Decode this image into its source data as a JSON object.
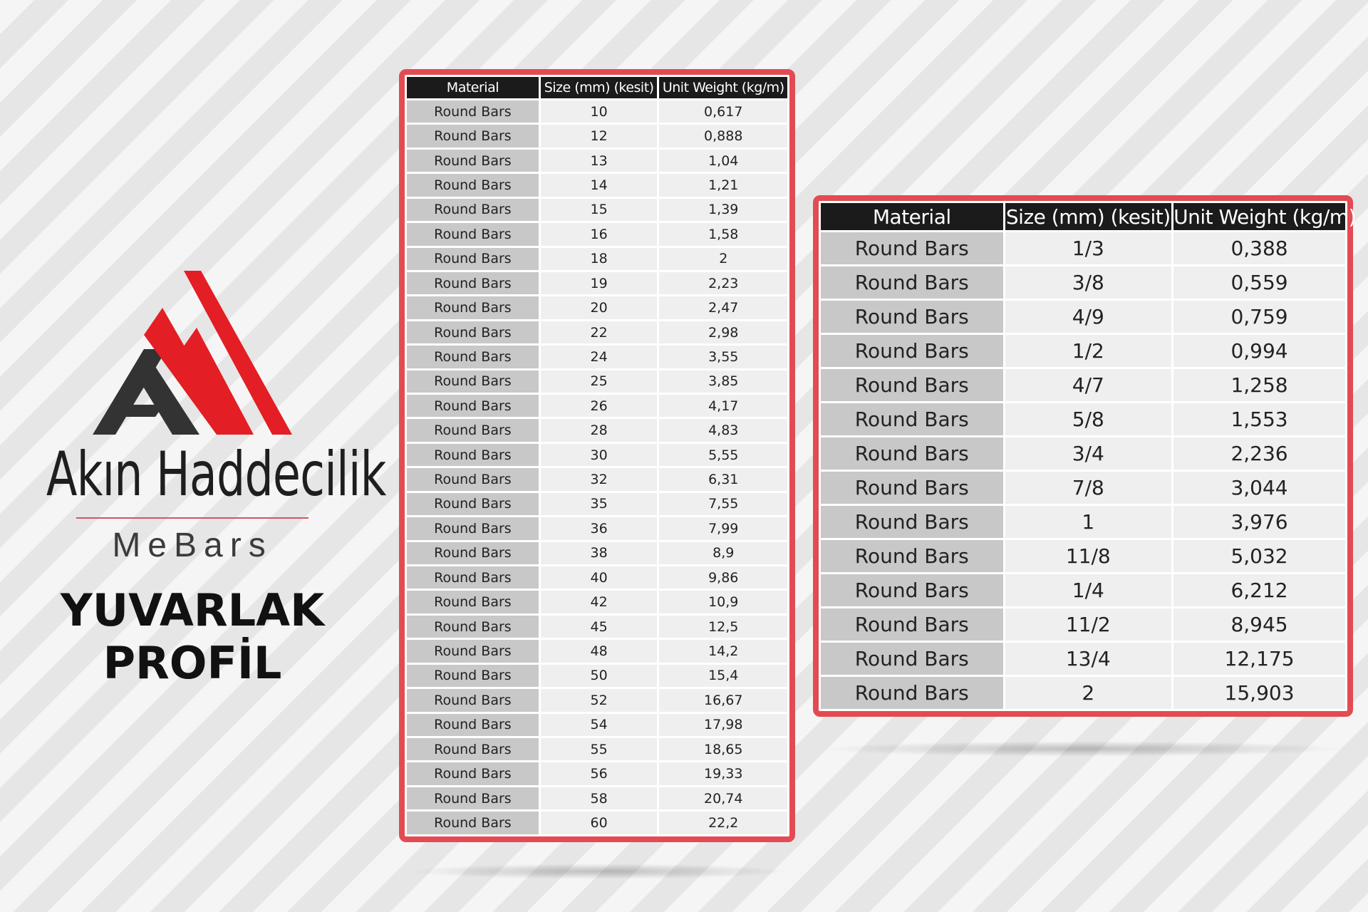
{
  "brand": {
    "company": "Akın Haddecilik",
    "sub": "MeBars",
    "headline_line1": "YUVARLAK",
    "headline_line2": "PROFİL",
    "colors": {
      "red": "#e31e24",
      "dark": "#333333"
    }
  },
  "table_left": {
    "headers": [
      "Material",
      "Size (mm) (kesit)",
      "Unit Weight (kg/m)"
    ],
    "rows": [
      [
        "Round Bars",
        "10",
        "0,617"
      ],
      [
        "Round Bars",
        "12",
        "0,888"
      ],
      [
        "Round Bars",
        "13",
        "1,04"
      ],
      [
        "Round Bars",
        "14",
        "1,21"
      ],
      [
        "Round Bars",
        "15",
        "1,39"
      ],
      [
        "Round Bars",
        "16",
        "1,58"
      ],
      [
        "Round Bars",
        "18",
        "2"
      ],
      [
        "Round Bars",
        "19",
        "2,23"
      ],
      [
        "Round Bars",
        "20",
        "2,47"
      ],
      [
        "Round Bars",
        "22",
        "2,98"
      ],
      [
        "Round Bars",
        "24",
        "3,55"
      ],
      [
        "Round Bars",
        "25",
        "3,85"
      ],
      [
        "Round Bars",
        "26",
        "4,17"
      ],
      [
        "Round Bars",
        "28",
        "4,83"
      ],
      [
        "Round Bars",
        "30",
        "5,55"
      ],
      [
        "Round Bars",
        "32",
        "6,31"
      ],
      [
        "Round Bars",
        "35",
        "7,55"
      ],
      [
        "Round Bars",
        "36",
        "7,99"
      ],
      [
        "Round Bars",
        "38",
        "8,9"
      ],
      [
        "Round Bars",
        "40",
        "9,86"
      ],
      [
        "Round Bars",
        "42",
        "10,9"
      ],
      [
        "Round Bars",
        "45",
        "12,5"
      ],
      [
        "Round Bars",
        "48",
        "14,2"
      ],
      [
        "Round Bars",
        "50",
        "15,4"
      ],
      [
        "Round Bars",
        "52",
        "16,67"
      ],
      [
        "Round Bars",
        "54",
        "17,98"
      ],
      [
        "Round Bars",
        "55",
        "18,65"
      ],
      [
        "Round Bars",
        "56",
        "19,33"
      ],
      [
        "Round Bars",
        "58",
        "20,74"
      ],
      [
        "Round Bars",
        "60",
        "22,2"
      ]
    ]
  },
  "table_right": {
    "headers": [
      "Material",
      "Size (mm) (kesit)",
      "Unit Weight (kg/m)"
    ],
    "rows": [
      [
        "Round Bars",
        "1/3",
        "0,388"
      ],
      [
        "Round Bars",
        "3/8",
        "0,559"
      ],
      [
        "Round Bars",
        "4/9",
        "0,759"
      ],
      [
        "Round Bars",
        "1/2",
        "0,994"
      ],
      [
        "Round Bars",
        "4/7",
        "1,258"
      ],
      [
        "Round Bars",
        "5/8",
        "1,553"
      ],
      [
        "Round Bars",
        "3/4",
        "2,236"
      ],
      [
        "Round Bars",
        "7/8",
        "3,044"
      ],
      [
        "Round Bars",
        "1",
        "3,976"
      ],
      [
        "Round Bars",
        "11/8",
        "5,032"
      ],
      [
        "Round Bars",
        "1/4",
        "6,212"
      ],
      [
        "Round Bars",
        "11/2",
        "8,945"
      ],
      [
        "Round Bars",
        "13/4",
        "12,175"
      ],
      [
        "Round Bars",
        "2",
        "15,903"
      ]
    ]
  }
}
